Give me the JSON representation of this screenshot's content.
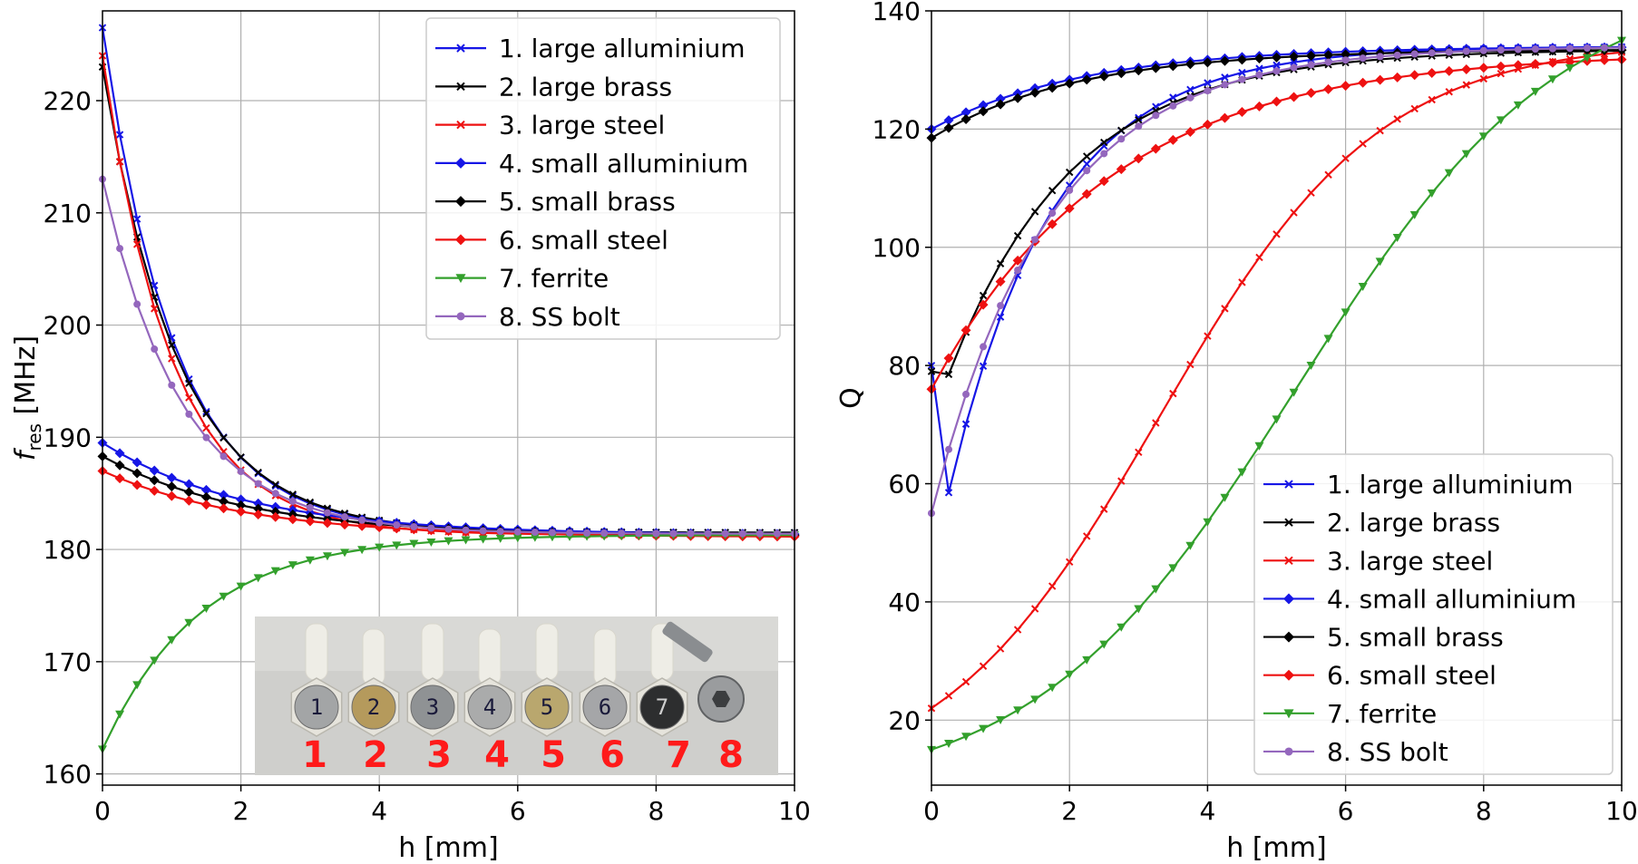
{
  "chart_data": [
    {
      "type": "line",
      "xlabel": "h [mm]",
      "ylabel": "f",
      "ylabel_sub": "res",
      "ylabel_unit": " [MHz]",
      "xlim": [
        0,
        10
      ],
      "ylim": [
        159,
        228
      ],
      "xticks": [
        0,
        2,
        4,
        6,
        8,
        10
      ],
      "yticks": [
        160,
        170,
        180,
        190,
        200,
        210,
        220
      ],
      "grid": true,
      "legend_position": "top-right",
      "inset_photo": {
        "numbers": [
          "1",
          "2",
          "3",
          "4",
          "5",
          "6",
          "7",
          "8"
        ],
        "object_marks": [
          "1",
          "2",
          "3",
          "4",
          "5",
          "6",
          "7"
        ]
      },
      "series": [
        {
          "name": "1. large alluminium",
          "color": "#1616e6",
          "marker": "x",
          "kind": "decay",
          "start": 226.5,
          "end": 181.5,
          "tau": 1.05
        },
        {
          "name": "2. large brass",
          "color": "#000000",
          "marker": "x",
          "kind": "decay",
          "start": 223.0,
          "end": 181.5,
          "tau": 1.1
        },
        {
          "name": "3. large steel",
          "color": "#ee1111",
          "marker": "x",
          "kind": "decay",
          "start": 224.0,
          "end": 181.3,
          "tau": 1.0
        },
        {
          "name": "4. small alluminium",
          "color": "#1616e6",
          "marker": "diamond",
          "kind": "decay",
          "start": 189.5,
          "end": 181.3,
          "tau": 2.1
        },
        {
          "name": "5. small brass",
          "color": "#000000",
          "marker": "diamond",
          "kind": "decay",
          "start": 188.3,
          "end": 181.2,
          "tau": 2.1
        },
        {
          "name": "6. small steel",
          "color": "#ee1111",
          "marker": "diamond",
          "kind": "decay",
          "start": 187.0,
          "end": 181.1,
          "tau": 2.1
        },
        {
          "name": "7. ferrite",
          "color": "#33a02c",
          "marker": "triangle",
          "kind": "decay",
          "start": 162.2,
          "end": 181.3,
          "tau": 1.4
        },
        {
          "name": "8. SS bolt",
          "color": "#9467bd",
          "marker": "circle",
          "kind": "decay",
          "start": 213.0,
          "end": 181.4,
          "tau": 1.15
        }
      ]
    },
    {
      "type": "line",
      "xlabel": "h [mm]",
      "ylabel": "Q",
      "xlim": [
        0,
        10
      ],
      "ylim": [
        9,
        140
      ],
      "xticks": [
        0,
        2,
        4,
        6,
        8,
        10
      ],
      "yticks": [
        20,
        40,
        60,
        80,
        100,
        120,
        140
      ],
      "grid": true,
      "legend_position": "lower-right",
      "series": [
        {
          "name": "1. large alluminium",
          "color": "#1616e6",
          "marker": "x",
          "kind": "dip",
          "start": 80,
          "dip_x": 0.25,
          "dip": 58.5,
          "end": 134,
          "tau": 1.5
        },
        {
          "name": "2. large brass",
          "color": "#000000",
          "marker": "x",
          "kind": "dip",
          "start": 79,
          "dip_x": 0.25,
          "dip": 78.5,
          "end": 133.5,
          "tau": 1.8
        },
        {
          "name": "3. large steel",
          "color": "#ee1111",
          "marker": "x",
          "kind": "sigmoid",
          "start": 22,
          "end": 133,
          "x0": 3.3,
          "w": 1.6
        },
        {
          "name": "4. small alluminium",
          "color": "#1616e6",
          "marker": "diamond",
          "kind": "rise",
          "start": 120,
          "end": 134,
          "tau": 2.2
        },
        {
          "name": "5. small brass",
          "color": "#000000",
          "marker": "diamond",
          "kind": "rise",
          "start": 118.5,
          "end": 133.5,
          "tau": 2.1
        },
        {
          "name": "6. small steel",
          "color": "#ee1111",
          "marker": "diamond",
          "kind": "rise",
          "start": 76,
          "end": 133,
          "tau": 2.6
        },
        {
          "name": "7. ferrite",
          "color": "#33a02c",
          "marker": "triangle",
          "kind": "sigmoid",
          "start": 15,
          "end": 135,
          "x0": 5.3,
          "w": 1.9
        },
        {
          "name": "8. SS bolt",
          "color": "#9467bd",
          "marker": "circle",
          "kind": "dip",
          "start": 55,
          "dip_x": 0.0,
          "dip": 55,
          "end": 134,
          "tau": 1.7
        }
      ]
    }
  ]
}
